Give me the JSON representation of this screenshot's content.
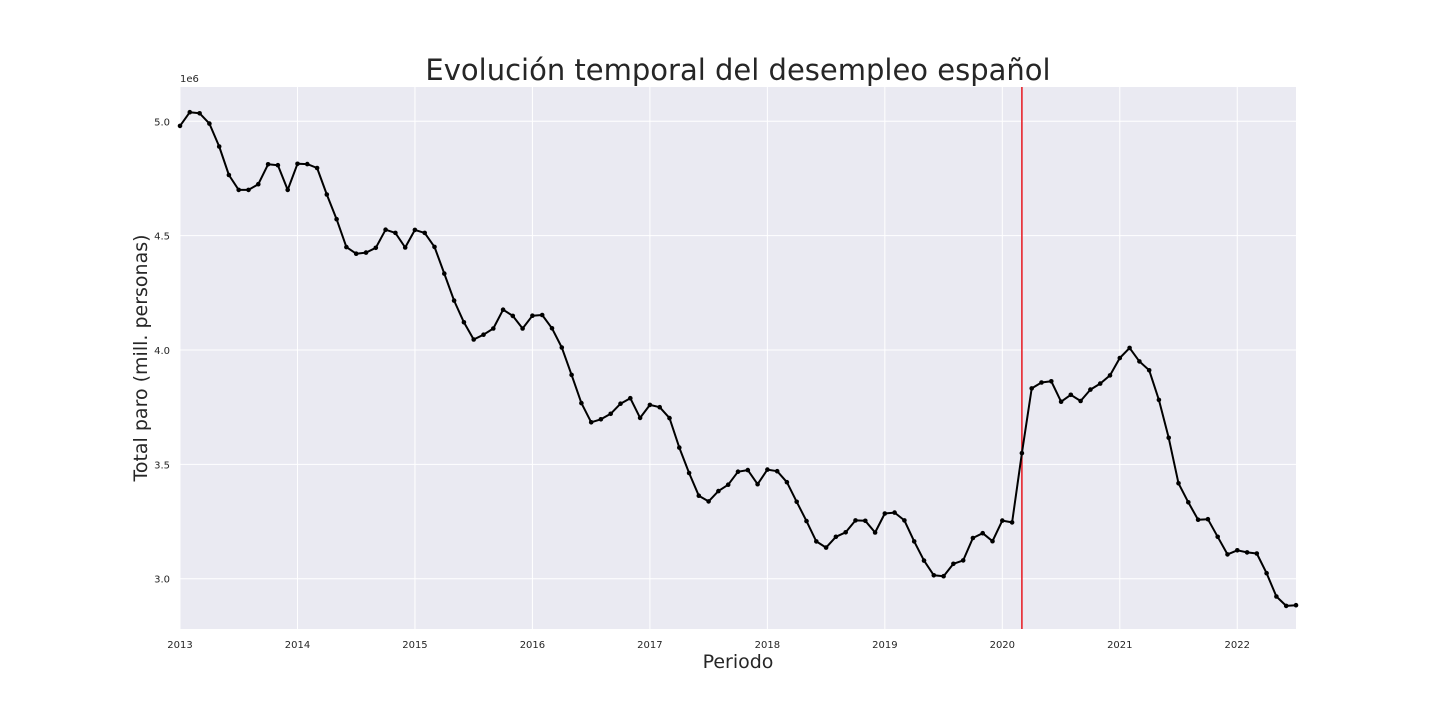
{
  "chart_data": {
    "type": "line",
    "title": "Evolución temporal del desempleo español",
    "xlabel": "Periodo",
    "ylabel": "Total paro (mill. personas)",
    "y_offset_label": "1e6",
    "xlim": [
      "2013-01",
      "2022-07"
    ],
    "ylim": [
      2780000,
      5150000
    ],
    "x_ticks": [
      "2013",
      "2014",
      "2015",
      "2016",
      "2017",
      "2018",
      "2019",
      "2020",
      "2021",
      "2022"
    ],
    "y_ticks": [
      "3.0",
      "3.5",
      "4.0",
      "4.5",
      "5.0"
    ],
    "grid": true,
    "reference_line": {
      "x": "2020-03",
      "color": "#e8242c"
    },
    "series": [
      {
        "color": "#000000",
        "x": [
          "2013-01",
          "2013-02",
          "2013-03",
          "2013-04",
          "2013-05",
          "2013-06",
          "2013-07",
          "2013-08",
          "2013-09",
          "2013-10",
          "2013-11",
          "2013-12",
          "2014-01",
          "2014-02",
          "2014-03",
          "2014-04",
          "2014-05",
          "2014-06",
          "2014-07",
          "2014-08",
          "2014-09",
          "2014-10",
          "2014-11",
          "2014-12",
          "2015-01",
          "2015-02",
          "2015-03",
          "2015-04",
          "2015-05",
          "2015-06",
          "2015-07",
          "2015-08",
          "2015-09",
          "2015-10",
          "2015-11",
          "2015-12",
          "2016-01",
          "2016-02",
          "2016-03",
          "2016-04",
          "2016-05",
          "2016-06",
          "2016-07",
          "2016-08",
          "2016-09",
          "2016-10",
          "2016-11",
          "2016-12",
          "2017-01",
          "2017-02",
          "2017-03",
          "2017-04",
          "2017-05",
          "2017-06",
          "2017-07",
          "2017-08",
          "2017-09",
          "2017-10",
          "2017-11",
          "2017-12",
          "2018-01",
          "2018-02",
          "2018-03",
          "2018-04",
          "2018-05",
          "2018-06",
          "2018-07",
          "2018-08",
          "2018-09",
          "2018-10",
          "2018-11",
          "2018-12",
          "2019-01",
          "2019-02",
          "2019-03",
          "2019-04",
          "2019-05",
          "2019-06",
          "2019-07",
          "2019-08",
          "2019-09",
          "2019-10",
          "2019-11",
          "2019-12",
          "2020-01",
          "2020-02",
          "2020-03",
          "2020-04",
          "2020-05",
          "2020-06",
          "2020-07",
          "2020-08",
          "2020-09",
          "2020-10",
          "2020-11",
          "2020-12",
          "2021-01",
          "2021-02",
          "2021-03",
          "2021-04",
          "2021-05",
          "2021-06",
          "2021-07",
          "2021-08",
          "2021-09",
          "2021-10",
          "2021-11",
          "2021-12",
          "2022-01",
          "2022-02",
          "2022-03",
          "2022-04",
          "2022-05",
          "2022-06",
          "2022-07"
        ],
        "values": [
          4980000,
          5040000,
          5035000,
          4990000,
          4890000,
          4765000,
          4700000,
          4700000,
          4725000,
          4812000,
          4808000,
          4700000,
          4814000,
          4813000,
          4796000,
          4680000,
          4572000,
          4450000,
          4421000,
          4426000,
          4447000,
          4526000,
          4512000,
          4448000,
          4525000,
          4512000,
          4451000,
          4334000,
          4216000,
          4121000,
          4046000,
          4067000,
          4094000,
          4176000,
          4149000,
          4094000,
          4150000,
          4153000,
          4095000,
          4011000,
          3891000,
          3768000,
          3684000,
          3697000,
          3721000,
          3765000,
          3789000,
          3703000,
          3760000,
          3750000,
          3702000,
          3573000,
          3462000,
          3363000,
          3338000,
          3383000,
          3411000,
          3468000,
          3475000,
          3413000,
          3477000,
          3470000,
          3422000,
          3336000,
          3252000,
          3163000,
          3136000,
          3183000,
          3203000,
          3255000,
          3253000,
          3202000,
          3285000,
          3289000,
          3255000,
          3163000,
          3079000,
          3015000,
          3011000,
          3065000,
          3080000,
          3178000,
          3199000,
          3164000,
          3254000,
          3246000,
          3549000,
          3832000,
          3858000,
          3863000,
          3774000,
          3804000,
          3777000,
          3827000,
          3853000,
          3889000,
          3965000,
          4009000,
          3950000,
          3911000,
          3782000,
          3616000,
          3417000,
          3334000,
          3258000,
          3260000,
          3183000,
          3106000,
          3124000,
          3115000,
          3110000,
          3024000,
          2922000,
          2881000,
          2884000
        ]
      }
    ]
  }
}
